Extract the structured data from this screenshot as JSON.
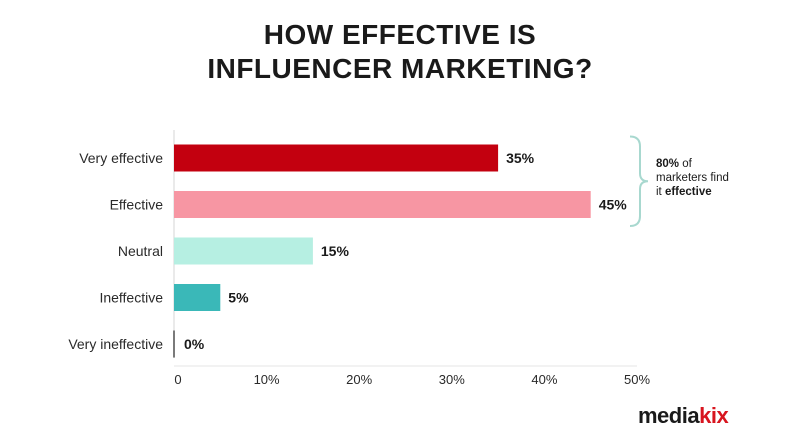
{
  "title_line1": "HOW EFFECTIVE IS",
  "title_line2": "INFLUENCER MARKETING?",
  "chart_data": {
    "type": "bar",
    "orientation": "horizontal",
    "categories": [
      "Very effective",
      "Effective",
      "Neutral",
      "Ineffective",
      "Very ineffective"
    ],
    "values": [
      35,
      45,
      15,
      5,
      0
    ],
    "value_labels": [
      "35%",
      "45%",
      "15%",
      "5%",
      "0%"
    ],
    "bar_colors": [
      "#c3000f",
      "#f796a3",
      "#b6efe2",
      "#3ab8b8",
      "#7a7a7a"
    ],
    "xlim": [
      0,
      50
    ],
    "x_ticks": [
      0,
      10,
      20,
      30,
      40,
      50
    ],
    "x_tick_labels": [
      "0",
      "10%",
      "20%",
      "30%",
      "40%",
      "50%"
    ],
    "xlabel": "",
    "ylabel": "",
    "grid": false,
    "annotation": {
      "bracket_covers": [
        "Very effective",
        "Effective"
      ],
      "bold_prefix": "80%",
      "middle_text": " of marketers find it ",
      "bold_suffix": "effective"
    }
  },
  "logo": {
    "text_part1": "media",
    "text_part2": "kix"
  }
}
